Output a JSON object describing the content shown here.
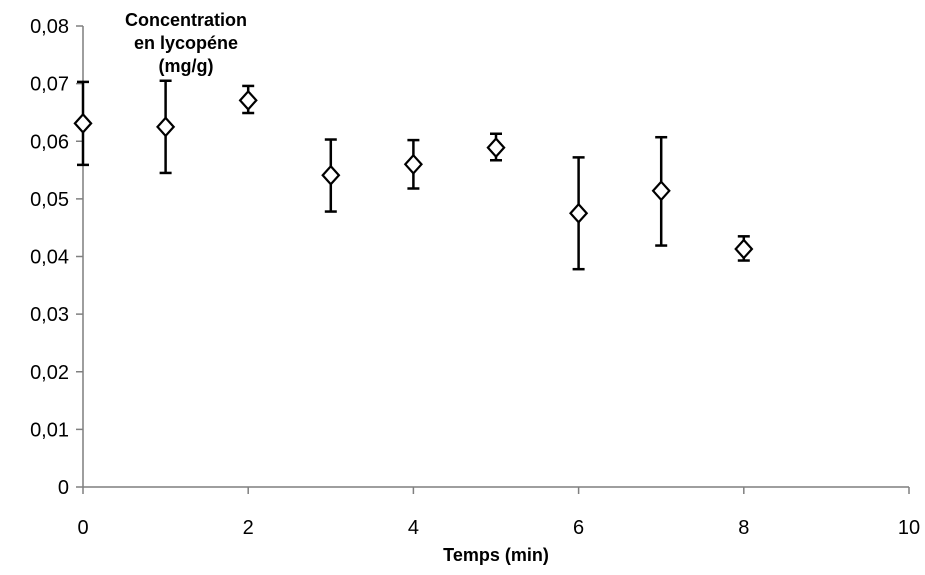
{
  "chart_data": {
    "type": "scatter",
    "title": "",
    "ylabel_lines": [
      "Concentration",
      "en lycopéne",
      "(mg/g)"
    ],
    "xlabel": "Temps (min)",
    "xlim": [
      0,
      10
    ],
    "ylim": [
      0,
      0.08
    ],
    "x_ticks": [
      0,
      2,
      4,
      6,
      8,
      10
    ],
    "x_tick_labels": [
      "0",
      "2",
      "4",
      "6",
      "8",
      "10"
    ],
    "y_ticks": [
      0,
      0.01,
      0.02,
      0.03,
      0.04,
      0.05,
      0.06,
      0.07,
      0.08
    ],
    "y_tick_labels": [
      "0",
      "0,01",
      "0,02",
      "0,03",
      "0,04",
      "0,05",
      "0,06",
      "0,07",
      "0,08"
    ],
    "grid": false,
    "legend": false,
    "marker": "open-diamond",
    "series": [
      {
        "points": [
          {
            "x": 0,
            "y": 0.0631,
            "err_low": 0.0559,
            "err_high": 0.0703
          },
          {
            "x": 1,
            "y": 0.0625,
            "err_low": 0.0545,
            "err_high": 0.0705
          },
          {
            "x": 2,
            "y": 0.0671,
            "err_low": 0.0649,
            "err_high": 0.0696
          },
          {
            "x": 3,
            "y": 0.0541,
            "err_low": 0.0478,
            "err_high": 0.0603
          },
          {
            "x": 4,
            "y": 0.056,
            "err_low": 0.0518,
            "err_high": 0.0602
          },
          {
            "x": 5,
            "y": 0.0589,
            "err_low": 0.0567,
            "err_high": 0.0613
          },
          {
            "x": 6,
            "y": 0.0475,
            "err_low": 0.0378,
            "err_high": 0.0572
          },
          {
            "x": 7,
            "y": 0.0514,
            "err_low": 0.0419,
            "err_high": 0.0607
          },
          {
            "x": 8,
            "y": 0.0413,
            "err_low": 0.0393,
            "err_high": 0.0435
          }
        ]
      }
    ]
  },
  "colors": {
    "axis": "#7f7f7f",
    "marker_stroke": "#000000",
    "marker_fill": "#ffffff",
    "error_bar": "#000000",
    "text": "#000000"
  }
}
